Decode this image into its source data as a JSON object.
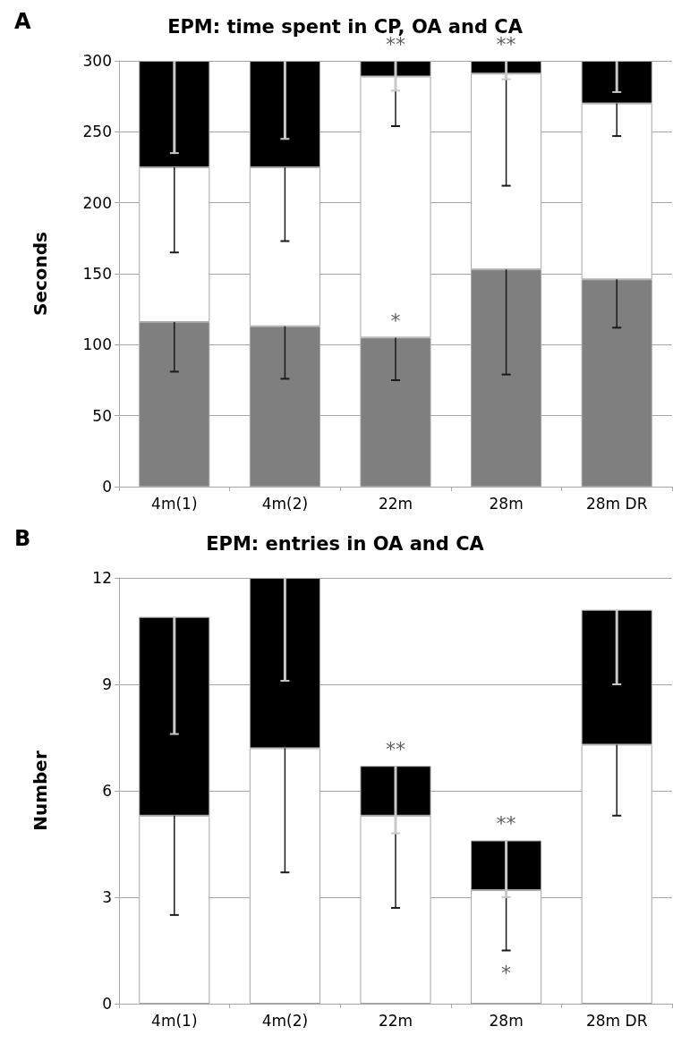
{
  "chart_data": [
    {
      "type": "bar",
      "title": "EPM: time spent in CP, OA and CA",
      "ylabel": "Seconds",
      "stacked": true,
      "categories": [
        "4m(1)",
        "4m(2)",
        "22m",
        "28m",
        "28m DR"
      ],
      "series": [
        {
          "color": "#7f7f7f",
          "values": [
            116,
            113,
            105,
            153,
            146
          ],
          "errors": [
            [
              81,
              116
            ],
            [
              76,
              113
            ],
            [
              75,
              105
            ],
            [
              79,
              153
            ],
            [
              112,
              146
            ]
          ]
        },
        {
          "color": "#ffffff",
          "values": [
            109,
            112,
            184,
            138,
            124
          ],
          "errors": [
            [
              165,
              225
            ],
            [
              173,
              225
            ],
            [
              254,
              289
            ],
            [
              212,
              291
            ],
            [
              247,
              270
            ]
          ]
        },
        {
          "color": "#000000",
          "values": [
            75,
            75,
            11,
            9,
            30
          ],
          "errors": [
            [
              235,
              300
            ],
            [
              245,
              300
            ],
            [
              279,
              300
            ],
            [
              287,
              300
            ],
            [
              278,
              300
            ]
          ]
        }
      ],
      "ylim": [
        0,
        300
      ],
      "yticks": [
        0,
        50,
        100,
        150,
        200,
        250,
        300
      ],
      "grid": "y",
      "annotations": [
        "A",
        {
          "text": "**",
          "x": "22m",
          "y": 300
        },
        {
          "text": "**",
          "x": "28m",
          "y": 300
        },
        {
          "text": "*",
          "x": "22m",
          "y": 105
        }
      ]
    },
    {
      "type": "bar",
      "title": "EPM: entries in OA and CA",
      "ylabel": "Number",
      "stacked": true,
      "categories": [
        "4m(1)",
        "4m(2)",
        "22m",
        "28m",
        "28m DR"
      ],
      "series": [
        {
          "color": "#ffffff",
          "values": [
            5.3,
            7.2,
            5.3,
            3.2,
            7.3
          ],
          "errors": [
            [
              2.5,
              5.3
            ],
            [
              3.7,
              7.2
            ],
            [
              2.7,
              5.3
            ],
            [
              1.5,
              3.2
            ],
            [
              5.3,
              7.3
            ]
          ]
        },
        {
          "color": "#000000",
          "values": [
            5.6,
            4.8,
            1.4,
            1.4,
            3.8
          ],
          "errors": [
            [
              7.6,
              10.9
            ],
            [
              9.1,
              12
            ],
            [
              4.8,
              6.7
            ],
            [
              3.0,
              4.6
            ],
            [
              9.0,
              11.1
            ]
          ]
        }
      ],
      "ylim": [
        0,
        12
      ],
      "yticks": [
        0,
        3,
        6,
        9,
        12
      ],
      "grid": "y",
      "annotations": [
        "B",
        {
          "text": "**",
          "x": "22m",
          "y": 6.7
        },
        {
          "text": "**",
          "x": "28m",
          "y": 4.6
        },
        {
          "text": "*",
          "x": "28m",
          "y": 1.5
        }
      ]
    }
  ]
}
